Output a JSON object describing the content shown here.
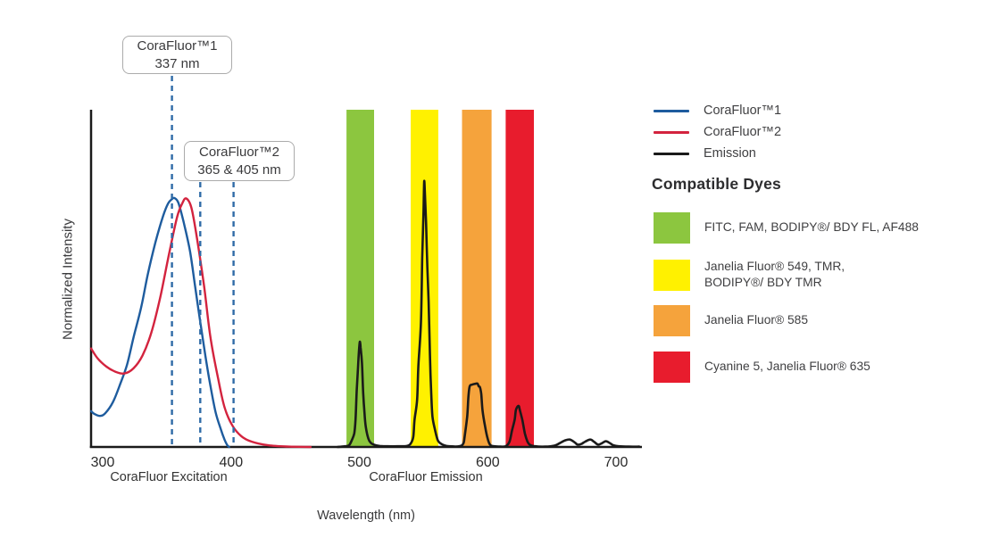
{
  "chart_data": {
    "type": "line",
    "xlabel": "Wavelength (nm)",
    "ylabel": "Normalized Intensity",
    "x_ticks": [
      300,
      400,
      500,
      600,
      700
    ],
    "x_range_nm": [
      291,
      720
    ],
    "y_range": [
      0,
      1
    ],
    "grid": false,
    "legend_position": "right",
    "x_section_labels": [
      {
        "text": "CoraFluor Excitation"
      },
      {
        "text": "CoraFluor Emission"
      }
    ],
    "annotations": [
      {
        "title": "CoraFluor™1",
        "value": "337 nm",
        "marker_nms_drawn": [
          354
        ]
      },
      {
        "title": "CoraFluor™2",
        "value": "365 & 405 nm",
        "marker_nms_drawn": [
          376,
          402
        ]
      }
    ],
    "marker_line_color": "#2F6BA7",
    "bands": [
      {
        "color": "#8CC63F",
        "nm": [
          490,
          511.5
        ]
      },
      {
        "color": "#FFF100",
        "nm": [
          540,
          561.5
        ]
      },
      {
        "color": "#F5A33C",
        "nm": [
          580,
          603
        ]
      },
      {
        "color": "#E81C2D",
        "nm": [
          614,
          636
        ]
      }
    ],
    "series": [
      {
        "name": "CoraFluor™1",
        "color": "#1E5C9E",
        "points": [
          [
            291,
            0.106
          ],
          [
            294,
            0.097
          ],
          [
            298,
            0.092
          ],
          [
            302,
            0.1
          ],
          [
            308,
            0.133
          ],
          [
            313,
            0.18
          ],
          [
            319,
            0.244
          ],
          [
            324,
            0.324
          ],
          [
            330,
            0.414
          ],
          [
            335,
            0.509
          ],
          [
            341,
            0.605
          ],
          [
            347,
            0.684
          ],
          [
            351,
            0.722
          ],
          [
            354,
            0.735
          ],
          [
            356,
            0.738
          ],
          [
            359,
            0.724
          ],
          [
            363,
            0.668
          ],
          [
            368,
            0.581
          ],
          [
            372,
            0.477
          ],
          [
            376,
            0.371
          ],
          [
            380,
            0.271
          ],
          [
            384,
            0.18
          ],
          [
            388,
            0.103
          ],
          [
            392,
            0.053
          ],
          [
            395,
            0.021
          ],
          [
            397,
            0.006
          ],
          [
            398.5,
            0
          ]
        ]
      },
      {
        "name": "CoraFluor™2",
        "color": "#D3233E",
        "points": [
          [
            291,
            0.292
          ],
          [
            296,
            0.263
          ],
          [
            303,
            0.238
          ],
          [
            310,
            0.223
          ],
          [
            317,
            0.218
          ],
          [
            324,
            0.233
          ],
          [
            331,
            0.271
          ],
          [
            338,
            0.34
          ],
          [
            345,
            0.446
          ],
          [
            352,
            0.578
          ],
          [
            358,
            0.682
          ],
          [
            362,
            0.722
          ],
          [
            365,
            0.737
          ],
          [
            369,
            0.711
          ],
          [
            373,
            0.631
          ],
          [
            379,
            0.477
          ],
          [
            384,
            0.324
          ],
          [
            390,
            0.202
          ],
          [
            395,
            0.117
          ],
          [
            401,
            0.064
          ],
          [
            408,
            0.032
          ],
          [
            416,
            0.016
          ],
          [
            429,
            0.005
          ],
          [
            445,
            0.001
          ],
          [
            462,
            0
          ]
        ]
      },
      {
        "name": "Emission",
        "color": "#1A1A1A",
        "points": [
          [
            483,
            0
          ],
          [
            489,
            0.002
          ],
          [
            492,
            0.005
          ],
          [
            494,
            0.019
          ],
          [
            496,
            0.04
          ],
          [
            497,
            0.08
          ],
          [
            498,
            0.17
          ],
          [
            499,
            0.24
          ],
          [
            500,
            0.3
          ],
          [
            500.5,
            0.312
          ],
          [
            501,
            0.295
          ],
          [
            502,
            0.25
          ],
          [
            503,
            0.16
          ],
          [
            504,
            0.1
          ],
          [
            505,
            0.06
          ],
          [
            507,
            0.025
          ],
          [
            509,
            0.012
          ],
          [
            512,
            0.006
          ],
          [
            516,
            0.003
          ],
          [
            522,
            0.002
          ],
          [
            530,
            0.002
          ],
          [
            537,
            0.003
          ],
          [
            540,
            0.01
          ],
          [
            542,
            0.03
          ],
          [
            543,
            0.08
          ],
          [
            545,
            0.14
          ],
          [
            546,
            0.24
          ],
          [
            548,
            0.37
          ],
          [
            549,
            0.56
          ],
          [
            550,
            0.7
          ],
          [
            550.5,
            0.786
          ],
          [
            551,
            0.76
          ],
          [
            552,
            0.66
          ],
          [
            553,
            0.53
          ],
          [
            554,
            0.43
          ],
          [
            555,
            0.27
          ],
          [
            556,
            0.16
          ],
          [
            557,
            0.09
          ],
          [
            559,
            0.05
          ],
          [
            561,
            0.021
          ],
          [
            563,
            0.011
          ],
          [
            566,
            0.005
          ],
          [
            570,
            0.002
          ],
          [
            578,
            0.002
          ],
          [
            581,
            0.01
          ],
          [
            582,
            0.03
          ],
          [
            584,
            0.09
          ],
          [
            585,
            0.15
          ],
          [
            586,
            0.18
          ],
          [
            588,
            0.185
          ],
          [
            590,
            0.187
          ],
          [
            592,
            0.188
          ],
          [
            593,
            0.18
          ],
          [
            594,
            0.177
          ],
          [
            595,
            0.156
          ],
          [
            596,
            0.108
          ],
          [
            598,
            0.06
          ],
          [
            600,
            0.024
          ],
          [
            602,
            0.006
          ],
          [
            605,
            0.002
          ],
          [
            610,
            0.001
          ],
          [
            614,
            0.002
          ],
          [
            617,
            0.016
          ],
          [
            619,
            0.05
          ],
          [
            621,
            0.08
          ],
          [
            622,
            0.11
          ],
          [
            624,
            0.122
          ],
          [
            625,
            0.11
          ],
          [
            627,
            0.08
          ],
          [
            629,
            0.04
          ],
          [
            631,
            0.016
          ],
          [
            633,
            0.006
          ],
          [
            637,
            0.002
          ],
          [
            645,
            0.001
          ],
          [
            652,
            0.004
          ],
          [
            656,
            0.011
          ],
          [
            660,
            0.019
          ],
          [
            664,
            0.022
          ],
          [
            668,
            0.013
          ],
          [
            670,
            0.007
          ],
          [
            673,
            0.009
          ],
          [
            676,
            0.016
          ],
          [
            680,
            0.022
          ],
          [
            683,
            0.015
          ],
          [
            686,
            0.007
          ],
          [
            689,
            0.011
          ],
          [
            692,
            0.017
          ],
          [
            695,
            0.012
          ],
          [
            698,
            0.005
          ],
          [
            702,
            0.002
          ],
          [
            710,
            0.001
          ],
          [
            718,
            0.001
          ]
        ]
      }
    ]
  },
  "legend": {
    "series": [
      {
        "label": "CoraFluor™1",
        "color": "#1E5C9E"
      },
      {
        "label": "CoraFluor™2",
        "color": "#D3233E"
      },
      {
        "label": "Emission",
        "color": "#1A1A1A"
      }
    ],
    "heading": "Compatible Dyes",
    "dyes": [
      {
        "color": "#8CC63F",
        "lines": [
          "FITC, FAM, BODIPY®/ BDY FL, AF488"
        ]
      },
      {
        "color": "#FFF100",
        "lines": [
          "Janelia Fluor® 549, TMR,",
          "BODIPY®/ BDY TMR"
        ]
      },
      {
        "color": "#F5A33C",
        "lines": [
          "Janelia Fluor® 585"
        ]
      },
      {
        "color": "#E81C2D",
        "lines": [
          "Cyanine 5, Janelia Fluor® 635"
        ]
      }
    ]
  }
}
